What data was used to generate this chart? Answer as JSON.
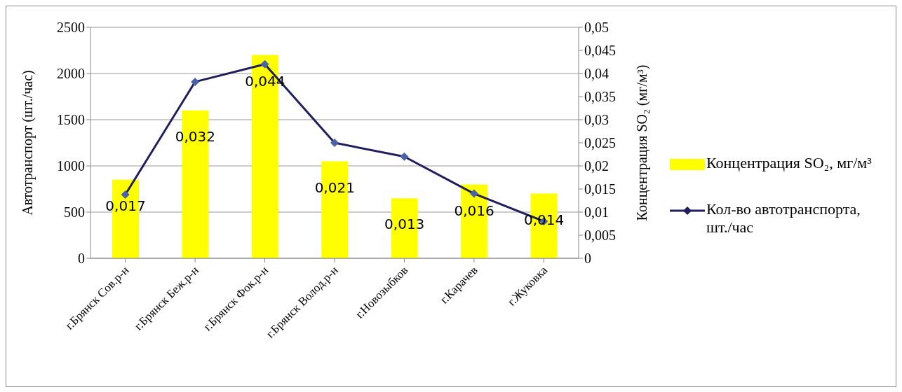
{
  "chart_data": {
    "type": "bar",
    "ylabel": "Автотранспорт (шт./час)",
    "y2label": "Концентрация SO₂ (мг/м³)",
    "categories": [
      "г.Брянск Сов.р-н",
      "г.Брянск Беж.р-н",
      "г.Брянск Фок.р-н",
      "г.Брянск Волод.р-н",
      "г.Новозыбков",
      "г.Карачев",
      "г.Жуковка"
    ],
    "series": [
      {
        "name": "Концентрация SO₂, мг/м³",
        "color": "#ffff00",
        "axis": "y2",
        "values": [
          0.017,
          0.032,
          0.044,
          0.021,
          0.013,
          0.016,
          0.014
        ],
        "value_labels": [
          "0,017",
          "0,032",
          "0,044",
          "0,021",
          "0,013",
          "0,016",
          "0,014"
        ]
      },
      {
        "type": "line",
        "name": "Кол-во автотранспорта, шт./час",
        "color": "#1f1f5f",
        "values": [
          690,
          1910,
          2100,
          1250,
          1100,
          700,
          400
        ]
      }
    ],
    "ylim": [
      0,
      2500
    ],
    "yticks": [
      0,
      500,
      1000,
      1500,
      2000,
      2500
    ],
    "y2lim": [
      0,
      0.05
    ],
    "y2ticks": [
      {
        "value": 0,
        "label": "0"
      },
      {
        "value": 0.005,
        "label": "0,005"
      },
      {
        "value": 0.01,
        "label": "0,01"
      },
      {
        "value": 0.015,
        "label": "0,015"
      },
      {
        "value": 0.02,
        "label": "0,02"
      },
      {
        "value": 0.025,
        "label": "0,025"
      },
      {
        "value": 0.03,
        "label": "0,03"
      },
      {
        "value": 0.035,
        "label": "0,035"
      },
      {
        "value": 0.04,
        "label": "0,04"
      },
      {
        "value": 0.045,
        "label": "0,045"
      },
      {
        "value": 0.05,
        "label": "0,05"
      }
    ],
    "grid": "y",
    "legend": "right",
    "marker": "diamond",
    "line_style": "solid"
  }
}
